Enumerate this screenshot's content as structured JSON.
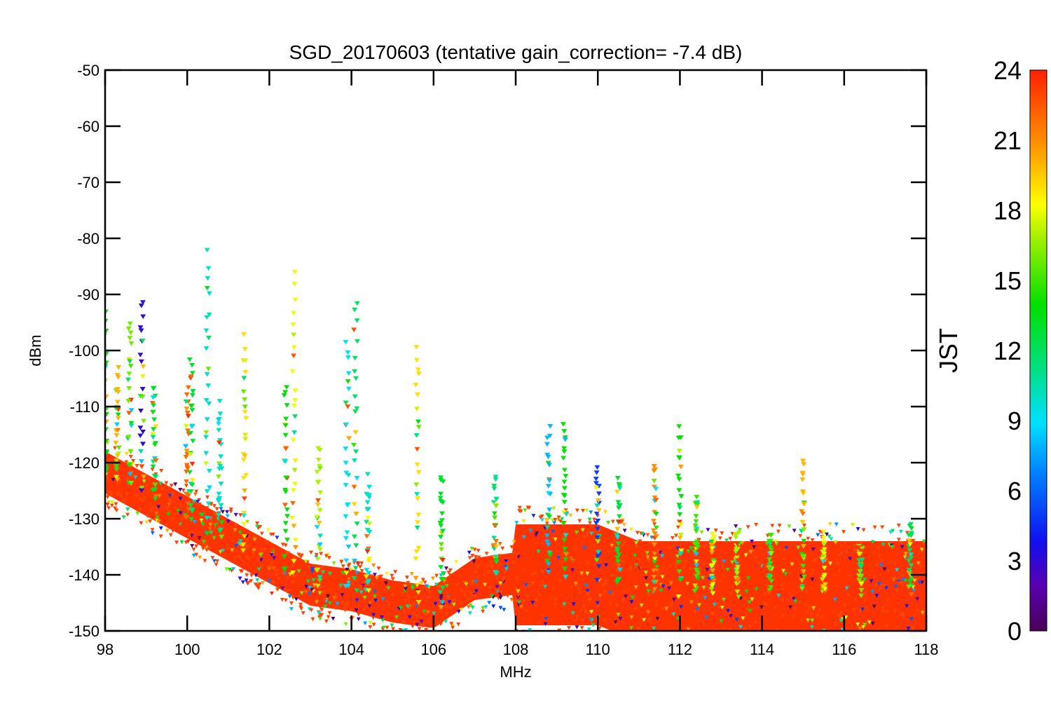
{
  "chart_data": {
    "type": "scatter",
    "title": "SGD_20170603 (tentative gain_correction= -7.4 dB)",
    "xlabel": "MHz",
    "ylabel": "dBm",
    "xlim": [
      98,
      118
    ],
    "ylim": [
      -150,
      -50
    ],
    "x_ticks": [
      "98",
      "100",
      "102",
      "104",
      "106",
      "108",
      "110",
      "112",
      "114",
      "116",
      "118"
    ],
    "y_ticks": [
      "-50",
      "-60",
      "-70",
      "-80",
      "-90",
      "-100",
      "-110",
      "-120",
      "-130",
      "-140",
      "-150"
    ],
    "grid": false,
    "marker": "triangle-down",
    "colorbar": {
      "label": "JST",
      "range": [
        0,
        24
      ],
      "ticks": [
        "24",
        "21",
        "18",
        "15",
        "12",
        "9",
        "6",
        "3",
        "0"
      ],
      "colormap": "rainbow"
    },
    "noise_floor": [
      {
        "x": 98,
        "y": -122
      },
      {
        "x": 99,
        "y": -126
      },
      {
        "x": 100,
        "y": -130
      },
      {
        "x": 101,
        "y": -134
      },
      {
        "x": 102,
        "y": -138
      },
      {
        "x": 103,
        "y": -142
      },
      {
        "x": 104,
        "y": -143
      },
      {
        "x": 105,
        "y": -145
      },
      {
        "x": 106,
        "y": -146
      },
      {
        "x": 107,
        "y": -141
      },
      {
        "x": 108,
        "y": -140
      },
      {
        "x": 109,
        "y": -140
      },
      {
        "x": 110,
        "y": -140
      },
      {
        "x": 111,
        "y": -143
      },
      {
        "x": 112,
        "y": -143
      },
      {
        "x": 113,
        "y": -143
      },
      {
        "x": 114,
        "y": -143
      },
      {
        "x": 115,
        "y": -143
      },
      {
        "x": 116,
        "y": -143
      },
      {
        "x": 117,
        "y": -143
      },
      {
        "x": 118,
        "y": -143
      }
    ],
    "peaks": [
      {
        "x": 98.0,
        "y": -92,
        "jst": 14
      },
      {
        "x": 98.3,
        "y": -104,
        "jst": 20
      },
      {
        "x": 98.6,
        "y": -95,
        "jst": 16
      },
      {
        "x": 98.9,
        "y": -91,
        "jst": 3
      },
      {
        "x": 99.2,
        "y": -106,
        "jst": 13
      },
      {
        "x": 100.0,
        "y": -107,
        "jst": 22
      },
      {
        "x": 100.1,
        "y": -101,
        "jst": 13
      },
      {
        "x": 100.5,
        "y": -83,
        "jst": 10
      },
      {
        "x": 100.8,
        "y": -110,
        "jst": 10
      },
      {
        "x": 101.4,
        "y": -98,
        "jst": 19
      },
      {
        "x": 102.4,
        "y": -106,
        "jst": 14
      },
      {
        "x": 102.6,
        "y": -87,
        "jst": 18
      },
      {
        "x": 103.2,
        "y": -117,
        "jst": 17
      },
      {
        "x": 103.9,
        "y": -98,
        "jst": 9
      },
      {
        "x": 104.1,
        "y": -91,
        "jst": 12
      },
      {
        "x": 104.4,
        "y": -123,
        "jst": 10
      },
      {
        "x": 105.6,
        "y": -99,
        "jst": 19
      },
      {
        "x": 106.2,
        "y": -122,
        "jst": 13
      },
      {
        "x": 107.5,
        "y": -123,
        "jst": 11
      },
      {
        "x": 108.8,
        "y": -114,
        "jst": 8
      },
      {
        "x": 109.2,
        "y": -113,
        "jst": 14
      },
      {
        "x": 110.0,
        "y": -121,
        "jst": 5
      },
      {
        "x": 110.5,
        "y": -123,
        "jst": 13
      },
      {
        "x": 111.4,
        "y": -120,
        "jst": 21
      },
      {
        "x": 112.0,
        "y": -114,
        "jst": 14
      },
      {
        "x": 112.4,
        "y": -126,
        "jst": 15
      },
      {
        "x": 112.8,
        "y": -133,
        "jst": 18
      },
      {
        "x": 113.4,
        "y": -132,
        "jst": 17
      },
      {
        "x": 114.2,
        "y": -133,
        "jst": 15
      },
      {
        "x": 115.0,
        "y": -120,
        "jst": 20
      },
      {
        "x": 115.5,
        "y": -133,
        "jst": 18
      },
      {
        "x": 116.4,
        "y": -134,
        "jst": 16
      },
      {
        "x": 117.6,
        "y": -131,
        "jst": 12
      }
    ]
  }
}
